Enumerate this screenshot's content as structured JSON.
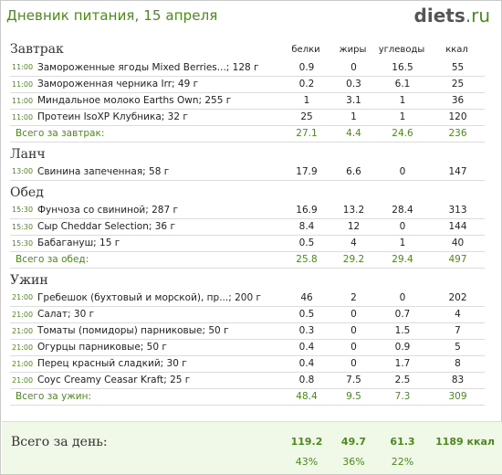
{
  "header": {
    "title": "Дневник питания, 15 апреля",
    "logo_main": "diets",
    "logo_tld": ".ru"
  },
  "columns": {
    "protein": "белки",
    "fat": "жиры",
    "carbs": "углеводы",
    "kcal": "ккал"
  },
  "meals": [
    {
      "title": "Завтрак",
      "items": [
        {
          "time": "11:00",
          "name": "Замороженные ягоды Mixed Berries...; 128 г",
          "protein": "0.9",
          "fat": "0",
          "carbs": "16.5",
          "kcal": "55"
        },
        {
          "time": "11:00",
          "name": "Замороженная черника Irr; 49 г",
          "protein": "0.2",
          "fat": "0.3",
          "carbs": "6.1",
          "kcal": "25"
        },
        {
          "time": "11:00",
          "name": "Миндальное молоко Earths Own; 255 г",
          "protein": "1",
          "fat": "3.1",
          "carbs": "1",
          "kcal": "36"
        },
        {
          "time": "11:00",
          "name": "Протеин IsoXP Клубника; 32 г",
          "protein": "25",
          "fat": "1",
          "carbs": "1",
          "kcal": "120"
        }
      ],
      "total": {
        "label": "Всего за завтрак:",
        "protein": "27.1",
        "fat": "4.4",
        "carbs": "24.6",
        "kcal": "236"
      }
    },
    {
      "title": "Ланч",
      "items": [
        {
          "time": "13:00",
          "name": "Свинина запеченная; 58 г",
          "protein": "17.9",
          "fat": "6.6",
          "carbs": "0",
          "kcal": "147"
        }
      ]
    },
    {
      "title": "Обед",
      "items": [
        {
          "time": "15:30",
          "name": "Фунчоза со свининой; 287 г",
          "protein": "16.9",
          "fat": "13.2",
          "carbs": "28.4",
          "kcal": "313"
        },
        {
          "time": "15:30",
          "name": "Сыр Cheddar Selection; 36 г",
          "protein": "8.4",
          "fat": "12",
          "carbs": "0",
          "kcal": "144"
        },
        {
          "time": "15:30",
          "name": "Бабагануш; 15 г",
          "protein": "0.5",
          "fat": "4",
          "carbs": "1",
          "kcal": "40"
        }
      ],
      "total": {
        "label": "Всего за обед:",
        "protein": "25.8",
        "fat": "29.2",
        "carbs": "29.4",
        "kcal": "497"
      }
    },
    {
      "title": "Ужин",
      "items": [
        {
          "time": "21:00",
          "name": "Гребешок (бухтовый и морской), пр...; 200 г",
          "protein": "46",
          "fat": "2",
          "carbs": "0",
          "kcal": "202"
        },
        {
          "time": "21:00",
          "name": "Салат; 30 г",
          "protein": "0.5",
          "fat": "0",
          "carbs": "0.7",
          "kcal": "4"
        },
        {
          "time": "21:00",
          "name": "Томаты (помидоры) парниковые; 50 г",
          "protein": "0.3",
          "fat": "0",
          "carbs": "1.5",
          "kcal": "7"
        },
        {
          "time": "21:00",
          "name": "Огурцы парниковые; 50 г",
          "protein": "0.4",
          "fat": "0",
          "carbs": "0.9",
          "kcal": "5"
        },
        {
          "time": "21:00",
          "name": "Перец красный сладкий; 30 г",
          "protein": "0.4",
          "fat": "0",
          "carbs": "1.7",
          "kcal": "8"
        },
        {
          "time": "21:00",
          "name": "Соус Creamy Ceasar Kraft; 25 г",
          "protein": "0.8",
          "fat": "7.5",
          "carbs": "2.5",
          "kcal": "83"
        }
      ],
      "total": {
        "label": "Всего за ужин:",
        "protein": "48.4",
        "fat": "9.5",
        "carbs": "7.3",
        "kcal": "309"
      }
    }
  ],
  "day_total": {
    "label": "Всего за день:",
    "protein": "119.2",
    "fat": "49.7",
    "carbs": "61.3",
    "kcal": "1189 ккал",
    "protein_pct": "43%",
    "fat_pct": "36%",
    "carbs_pct": "22%"
  }
}
